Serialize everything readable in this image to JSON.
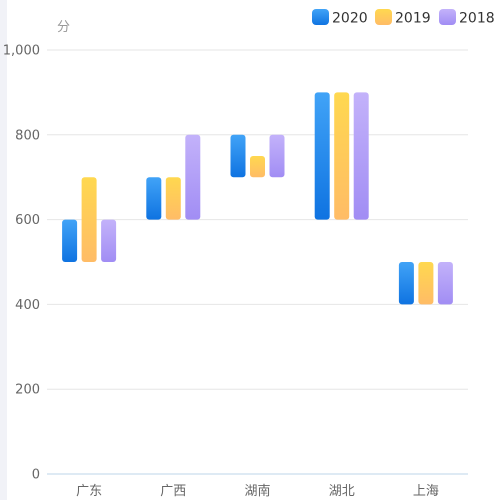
{
  "chart_data": {
    "type": "bar",
    "subtype": "floating-range",
    "unit": "分",
    "categories": [
      "广东",
      "广西",
      "湖南",
      "湖北",
      "上海"
    ],
    "ylim": [
      0,
      1000
    ],
    "yticks": [
      0,
      200,
      400,
      600,
      800,
      1000
    ],
    "ytick_labels": [
      "0",
      "200",
      "400",
      "600",
      "800",
      "1,000"
    ],
    "grid": true,
    "legend_position": "top-right",
    "series": [
      {
        "name": "2020",
        "color_top": "#41a3f7",
        "color_bottom": "#0f73e1",
        "ranges": [
          [
            500,
            600
          ],
          [
            600,
            700
          ],
          [
            700,
            800
          ],
          [
            600,
            900
          ],
          [
            400,
            500
          ]
        ]
      },
      {
        "name": "2019",
        "color_top": "#ffd84f",
        "color_bottom": "#ffbc66",
        "ranges": [
          [
            500,
            700
          ],
          [
            600,
            700
          ],
          [
            700,
            750
          ],
          [
            600,
            900
          ],
          [
            400,
            500
          ]
        ]
      },
      {
        "name": "2018",
        "color_top": "#c3b2fa",
        "color_bottom": "#a18df4",
        "ranges": [
          [
            500,
            600
          ],
          [
            600,
            800
          ],
          [
            700,
            800
          ],
          [
            600,
            900
          ],
          [
            400,
            500
          ]
        ]
      }
    ]
  },
  "colors": {
    "grid": "#e6e6e6",
    "axis": "#bdd4ea",
    "tick_text": "#666666",
    "unit_text": "#999999"
  }
}
